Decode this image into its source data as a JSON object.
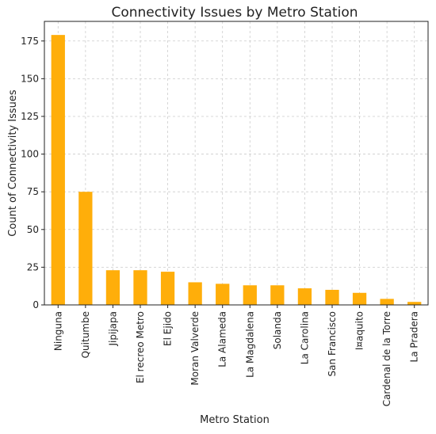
{
  "chart_data": {
    "type": "bar",
    "title": "Connectivity Issues by Metro Station",
    "xlabel": "Metro Station",
    "ylabel": "Count of Connectivity Issues",
    "categories": [
      "Ninguna",
      "Quitumbe",
      "Jipijapa",
      "El recreo Metro",
      "El Ejido",
      "Moran Valverde",
      "La Alameda",
      "La Magdalena",
      "Solanda",
      "La Carolina",
      "San Francisco",
      "I¤aquito",
      "Cardenal de la Torre",
      "La Pradera"
    ],
    "values": [
      179,
      75,
      23,
      23,
      22,
      15,
      14,
      13,
      13,
      11,
      10,
      8,
      4,
      2
    ],
    "ylim": [
      0,
      188
    ],
    "yticks": [
      0,
      25,
      50,
      75,
      100,
      125,
      150,
      175
    ],
    "grid": true,
    "bar_color": "#FFAE0A"
  }
}
